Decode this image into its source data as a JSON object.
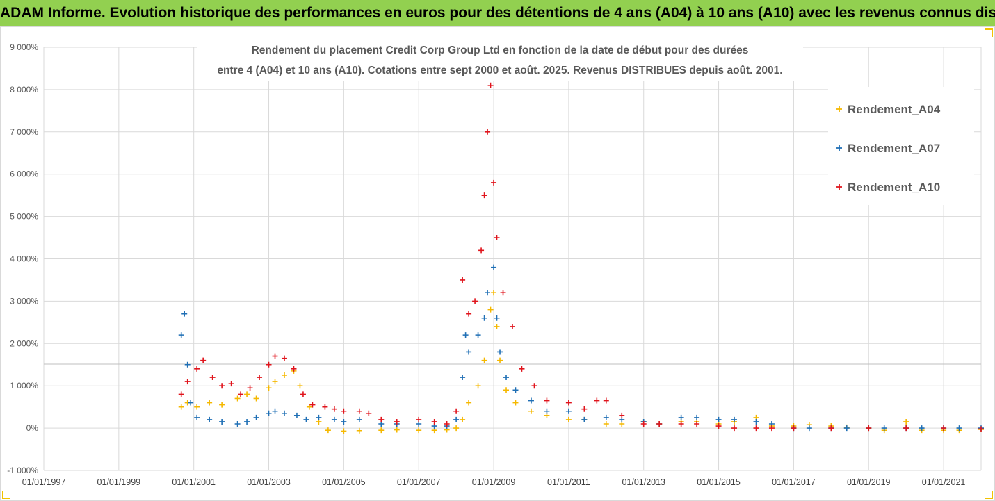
{
  "header": {
    "banner_title": "ADAM Informe. Evolution historique des performances en euros pour des détentions de 4 ans (A04) à 10 ans (A10) avec les revenus connus distribués"
  },
  "colors": {
    "banner_bg": "#92d050",
    "A04": "#f5b800",
    "A07": "#1f6fb5",
    "A10": "#e0141c",
    "grid": "#d9d9d9"
  },
  "chart_data": {
    "type": "scatter",
    "title_lines": [
      "Rendement du placement Credit Corp Group Ltd en fonction de la date de début pour des durées",
      "entre 4 (A04) et 10 ans (A10). Cotations entre sept 2000 et août. 2025. Revenus DISTRIBUES depuis août. 2001."
    ],
    "xlabel": "",
    "ylabel": "",
    "x_range": [
      "1997-01-01",
      "2022-01-01"
    ],
    "ylim": [
      -1000,
      9000
    ],
    "y_ticks": [
      -1000,
      0,
      1000,
      2000,
      3000,
      4000,
      5000,
      6000,
      7000,
      8000,
      9000
    ],
    "y_tick_labels": [
      "-1 000%",
      "0%",
      "1 000%",
      "2 000%",
      "3 000%",
      "4 000%",
      "5 000%",
      "6 000%",
      "7 000%",
      "8 000%",
      "9 000%"
    ],
    "x_tick_labels": [
      "01/01/1997",
      "01/01/1999",
      "01/01/2001",
      "01/01/2003",
      "01/01/2005",
      "01/01/2007",
      "01/01/2009",
      "01/01/2011",
      "01/01/2013",
      "01/01/2015",
      "01/01/2017",
      "01/01/2019",
      "01/01/2021"
    ],
    "grid": true,
    "legend_position": "top-right",
    "marker": "+",
    "series": [
      {
        "name": "Rendement_A04",
        "color": "#f5b800",
        "points": [
          [
            "2000-09",
            500
          ],
          [
            "2000-11",
            600
          ],
          [
            "2001-02",
            500
          ],
          [
            "2001-06",
            600
          ],
          [
            "2001-10",
            550
          ],
          [
            "2002-03",
            700
          ],
          [
            "2002-06",
            800
          ],
          [
            "2002-09",
            700
          ],
          [
            "2003-01",
            950
          ],
          [
            "2003-03",
            1100
          ],
          [
            "2003-06",
            1250
          ],
          [
            "2003-09",
            1350
          ],
          [
            "2003-11",
            1000
          ],
          [
            "2004-02",
            500
          ],
          [
            "2004-05",
            150
          ],
          [
            "2004-08",
            -50
          ],
          [
            "2005-01",
            -70
          ],
          [
            "2005-06",
            -60
          ],
          [
            "2006-01",
            -50
          ],
          [
            "2006-06",
            -40
          ],
          [
            "2007-01",
            -50
          ],
          [
            "2007-06",
            -50
          ],
          [
            "2007-10",
            -40
          ],
          [
            "2008-01",
            0
          ],
          [
            "2008-03",
            200
          ],
          [
            "2008-05",
            600
          ],
          [
            "2008-08",
            1000
          ],
          [
            "2008-10",
            1600
          ],
          [
            "2008-12",
            2800
          ],
          [
            "2009-01",
            3200
          ],
          [
            "2009-02",
            2400
          ],
          [
            "2009-03",
            1600
          ],
          [
            "2009-05",
            900
          ],
          [
            "2009-08",
            600
          ],
          [
            "2010-01",
            400
          ],
          [
            "2010-06",
            300
          ],
          [
            "2011-01",
            200
          ],
          [
            "2011-06",
            200
          ],
          [
            "2012-01",
            100
          ],
          [
            "2012-06",
            100
          ],
          [
            "2013-01",
            150
          ],
          [
            "2013-06",
            100
          ],
          [
            "2014-01",
            150
          ],
          [
            "2014-06",
            150
          ],
          [
            "2015-01",
            100
          ],
          [
            "2015-06",
            150
          ],
          [
            "2016-01",
            250
          ],
          [
            "2016-06",
            50
          ],
          [
            "2017-01",
            50
          ],
          [
            "2017-06",
            80
          ],
          [
            "2018-01",
            50
          ],
          [
            "2018-06",
            20
          ],
          [
            "2019-01",
            0
          ],
          [
            "2019-06",
            -50
          ],
          [
            "2020-01",
            150
          ],
          [
            "2020-06",
            -50
          ],
          [
            "2021-01",
            -50
          ],
          [
            "2021-06",
            -50
          ],
          [
            "2022-01",
            -30
          ]
        ]
      },
      {
        "name": "Rendement_A07",
        "color": "#1f6fb5",
        "points": [
          [
            "2000-09",
            2200
          ],
          [
            "2000-10",
            2700
          ],
          [
            "2000-11",
            1500
          ],
          [
            "2000-12",
            600
          ],
          [
            "2001-02",
            250
          ],
          [
            "2001-06",
            200
          ],
          [
            "2001-10",
            150
          ],
          [
            "2002-03",
            100
          ],
          [
            "2002-06",
            150
          ],
          [
            "2002-09",
            250
          ],
          [
            "2003-01",
            350
          ],
          [
            "2003-03",
            400
          ],
          [
            "2003-06",
            350
          ],
          [
            "2003-10",
            300
          ],
          [
            "2004-01",
            200
          ],
          [
            "2004-05",
            250
          ],
          [
            "2004-10",
            200
          ],
          [
            "2005-01",
            150
          ],
          [
            "2005-06",
            200
          ],
          [
            "2006-01",
            100
          ],
          [
            "2006-06",
            100
          ],
          [
            "2007-01",
            100
          ],
          [
            "2007-06",
            50
          ],
          [
            "2007-10",
            50
          ],
          [
            "2008-01",
            200
          ],
          [
            "2008-03",
            1200
          ],
          [
            "2008-04",
            2200
          ],
          [
            "2008-05",
            1800
          ],
          [
            "2008-08",
            2200
          ],
          [
            "2008-10",
            2600
          ],
          [
            "2008-11",
            3200
          ],
          [
            "2009-01",
            3800
          ],
          [
            "2009-02",
            2600
          ],
          [
            "2009-03",
            1800
          ],
          [
            "2009-05",
            1200
          ],
          [
            "2009-08",
            900
          ],
          [
            "2010-01",
            650
          ],
          [
            "2010-06",
            400
          ],
          [
            "2011-01",
            400
          ],
          [
            "2011-06",
            200
          ],
          [
            "2012-01",
            250
          ],
          [
            "2012-06",
            200
          ],
          [
            "2013-01",
            150
          ],
          [
            "2013-06",
            100
          ],
          [
            "2014-01",
            250
          ],
          [
            "2014-06",
            250
          ],
          [
            "2015-01",
            200
          ],
          [
            "2015-06",
            200
          ],
          [
            "2016-01",
            150
          ],
          [
            "2016-06",
            100
          ],
          [
            "2017-01",
            0
          ],
          [
            "2017-06",
            0
          ],
          [
            "2018-01",
            0
          ],
          [
            "2018-06",
            0
          ],
          [
            "2019-01",
            0
          ],
          [
            "2019-06",
            0
          ],
          [
            "2020-01",
            0
          ],
          [
            "2020-06",
            0
          ],
          [
            "2021-01",
            0
          ],
          [
            "2021-06",
            0
          ],
          [
            "2022-01",
            0
          ]
        ]
      },
      {
        "name": "Rendement_A10",
        "color": "#e0141c",
        "points": [
          [
            "2000-09",
            800
          ],
          [
            "2000-11",
            1100
          ],
          [
            "2001-02",
            1400
          ],
          [
            "2001-04",
            1600
          ],
          [
            "2001-07",
            1200
          ],
          [
            "2001-10",
            1000
          ],
          [
            "2002-01",
            1050
          ],
          [
            "2002-04",
            800
          ],
          [
            "2002-07",
            950
          ],
          [
            "2002-10",
            1200
          ],
          [
            "2003-01",
            1500
          ],
          [
            "2003-03",
            1700
          ],
          [
            "2003-06",
            1650
          ],
          [
            "2003-09",
            1400
          ],
          [
            "2003-12",
            800
          ],
          [
            "2004-03",
            550
          ],
          [
            "2004-07",
            500
          ],
          [
            "2004-10",
            450
          ],
          [
            "2005-01",
            400
          ],
          [
            "2005-06",
            400
          ],
          [
            "2005-09",
            350
          ],
          [
            "2006-01",
            200
          ],
          [
            "2006-06",
            150
          ],
          [
            "2007-01",
            200
          ],
          [
            "2007-06",
            150
          ],
          [
            "2007-10",
            100
          ],
          [
            "2008-01",
            400
          ],
          [
            "2008-03",
            3500
          ],
          [
            "2008-05",
            2700
          ],
          [
            "2008-07",
            3000
          ],
          [
            "2008-09",
            4200
          ],
          [
            "2008-10",
            5500
          ],
          [
            "2008-11",
            7000
          ],
          [
            "2008-12",
            8100
          ],
          [
            "2009-01",
            5800
          ],
          [
            "2009-02",
            4500
          ],
          [
            "2009-04",
            3200
          ],
          [
            "2009-07",
            2400
          ],
          [
            "2009-10",
            1400
          ],
          [
            "2010-02",
            1000
          ],
          [
            "2010-06",
            650
          ],
          [
            "2011-01",
            600
          ],
          [
            "2011-06",
            450
          ],
          [
            "2011-10",
            650
          ],
          [
            "2012-01",
            650
          ],
          [
            "2012-06",
            300
          ],
          [
            "2013-01",
            100
          ],
          [
            "2013-06",
            100
          ],
          [
            "2014-01",
            100
          ],
          [
            "2014-06",
            100
          ],
          [
            "2015-01",
            50
          ],
          [
            "2015-06",
            0
          ],
          [
            "2016-01",
            0
          ],
          [
            "2016-06",
            0
          ],
          [
            "2017-01",
            0
          ],
          [
            "2018-01",
            0
          ],
          [
            "2019-01",
            0
          ],
          [
            "2020-01",
            0
          ],
          [
            "2021-01",
            0
          ],
          [
            "2022-01",
            -20
          ]
        ]
      }
    ]
  }
}
